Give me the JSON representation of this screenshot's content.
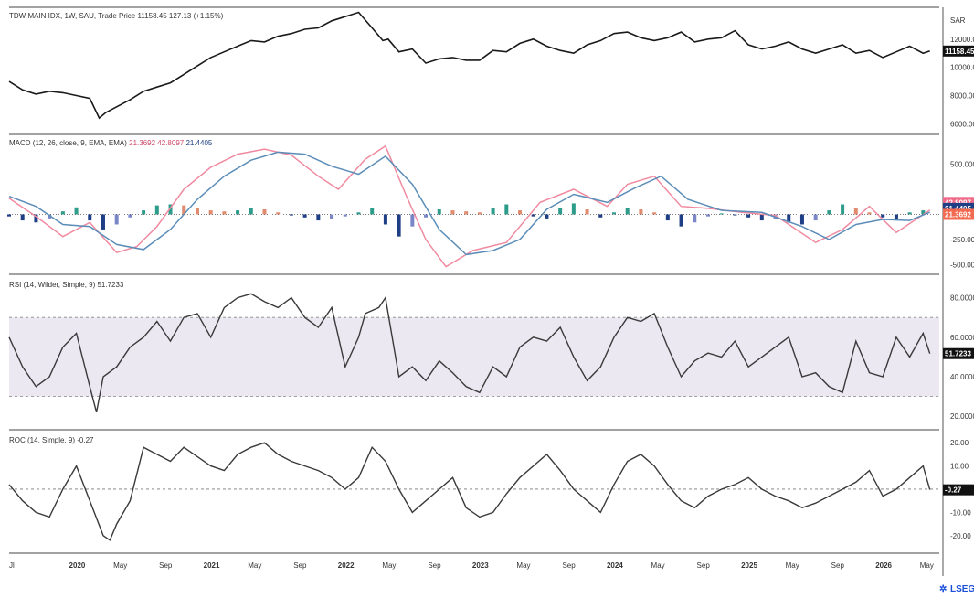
{
  "header": {
    "title": "TDW MAIN IDX, 1W, SAU, Trade Price",
    "last": "11158.45",
    "change": "127.13 (+1.15%)",
    "currency": "SAR"
  },
  "footer": {
    "logo": "LSEG"
  },
  "chart_data": [
    {
      "type": "line",
      "pane": "price",
      "title": "TDW MAIN IDX, 1W, SAU, Trade Price",
      "ylim": [
        5500,
        14000
      ],
      "yticks": [
        "12000.00",
        "10000.00",
        "8000.00",
        "6000.00"
      ],
      "ytick_values": [
        12000,
        10000,
        8000,
        6000
      ],
      "last_value": "11158.45",
      "color": "#1a1a1a",
      "x": [
        2019.5,
        2019.6,
        2019.7,
        2019.8,
        2019.9,
        2020.0,
        2020.1,
        2020.17,
        2020.22,
        2020.3,
        2020.4,
        2020.5,
        2020.6,
        2020.7,
        2020.8,
        2020.9,
        2021.0,
        2021.1,
        2021.2,
        2021.3,
        2021.4,
        2021.5,
        2021.6,
        2021.7,
        2021.8,
        2021.9,
        2022.0,
        2022.1,
        2022.2,
        2022.28,
        2022.32,
        2022.4,
        2022.5,
        2022.6,
        2022.7,
        2022.8,
        2022.9,
        2023.0,
        2023.1,
        2023.2,
        2023.3,
        2023.4,
        2023.5,
        2023.6,
        2023.7,
        2023.8,
        2023.9,
        2024.0,
        2024.1,
        2024.2,
        2024.3,
        2024.4,
        2024.5,
        2024.6,
        2024.7,
        2024.8,
        2024.9,
        2025.0,
        2025.1,
        2025.2,
        2025.3,
        2025.4,
        2025.5,
        2025.6,
        2025.7,
        2025.8,
        2025.9,
        2026.0,
        2026.1,
        2026.2,
        2026.3,
        2026.35
      ],
      "y": [
        9000,
        8400,
        8100,
        8300,
        8200,
        8000,
        7800,
        6400,
        6800,
        7200,
        7700,
        8300,
        8600,
        8900,
        9500,
        10100,
        10700,
        11100,
        11500,
        11900,
        11800,
        12200,
        12400,
        12700,
        12800,
        13300,
        13600,
        13900,
        12800,
        11900,
        12000,
        11100,
        11300,
        10300,
        10600,
        10700,
        10500,
        10500,
        11200,
        11100,
        11700,
        12000,
        11500,
        11200,
        11000,
        11600,
        11900,
        12400,
        12500,
        12100,
        11900,
        12100,
        12500,
        11800,
        12000,
        12100,
        12600,
        11600,
        11300,
        11500,
        11800,
        11300,
        11000,
        11300,
        11600,
        11000,
        11200,
        10700,
        11100,
        11500,
        11000,
        11158
      ]
    },
    {
      "type": "line",
      "pane": "macd",
      "title": "MACD (12, 26, close, 9, EMA, EMA)",
      "values_label": [
        "21.3692",
        "42.8097",
        "21.4405"
      ],
      "ylim": [
        -560,
        760
      ],
      "yticks": [
        "500.0000",
        "-250.0000",
        "-500.0000"
      ],
      "ytick_values": [
        500,
        -250,
        -500
      ],
      "series": [
        {
          "name": "MACD",
          "color": "#f08aa0",
          "tag": "42.8097",
          "x": [
            2019.5,
            2019.7,
            2019.9,
            2020.1,
            2020.3,
            2020.45,
            2020.6,
            2020.8,
            2021.0,
            2021.2,
            2021.4,
            2021.6,
            2021.8,
            2021.95,
            2022.15,
            2022.3,
            2022.45,
            2022.6,
            2022.75,
            2022.95,
            2023.2,
            2023.45,
            2023.7,
            2023.95,
            2024.1,
            2024.3,
            2024.5,
            2024.7,
            2024.95,
            2025.2,
            2025.5,
            2025.7,
            2025.9,
            2026.1,
            2026.35
          ],
          "y": [
            160,
            -20,
            -220,
            -80,
            -380,
            -320,
            -120,
            250,
            470,
            600,
            650,
            590,
            380,
            250,
            550,
            680,
            200,
            -250,
            -520,
            -360,
            -280,
            120,
            250,
            80,
            300,
            380,
            80,
            60,
            20,
            -10,
            -280,
            -150,
            80,
            -180,
            42.8
          ]
        },
        {
          "name": "Signal",
          "color": "#5b8db8",
          "tag": "21.4405",
          "x": [
            2019.5,
            2019.7,
            2019.9,
            2020.1,
            2020.3,
            2020.5,
            2020.7,
            2020.9,
            2021.1,
            2021.3,
            2021.5,
            2021.7,
            2021.9,
            2022.1,
            2022.3,
            2022.5,
            2022.7,
            2022.9,
            2023.1,
            2023.3,
            2023.5,
            2023.7,
            2023.95,
            2024.15,
            2024.35,
            2024.55,
            2024.8,
            2025.1,
            2025.4,
            2025.6,
            2025.8,
            2026.0,
            2026.2,
            2026.35
          ],
          "y": [
            180,
            80,
            -100,
            -120,
            -300,
            -350,
            -150,
            150,
            380,
            540,
            620,
            600,
            480,
            400,
            580,
            300,
            -150,
            -400,
            -360,
            -250,
            50,
            200,
            120,
            260,
            380,
            150,
            40,
            20,
            -120,
            -250,
            -100,
            -50,
            -60,
            21.4
          ]
        }
      ],
      "histogram": {
        "name": "Histogram",
        "tag": "21.3692",
        "color_pos": "#2e9c8a",
        "color_neg": "#1e3f86",
        "color_pos_fade": "#e08a6e",
        "color_neg_fade": "#7a86c8",
        "x": [
          2019.5,
          2019.6,
          2019.7,
          2019.8,
          2019.9,
          2020.0,
          2020.1,
          2020.2,
          2020.3,
          2020.4,
          2020.5,
          2020.6,
          2020.7,
          2020.8,
          2020.9,
          2021.0,
          2021.1,
          2021.2,
          2021.3,
          2021.4,
          2021.5,
          2021.6,
          2021.7,
          2021.8,
          2021.9,
          2022.0,
          2022.1,
          2022.2,
          2022.3,
          2022.4,
          2022.5,
          2022.6,
          2022.7,
          2022.8,
          2022.9,
          2023.0,
          2023.1,
          2023.2,
          2023.3,
          2023.4,
          2023.5,
          2023.6,
          2023.7,
          2023.8,
          2023.9,
          2024.0,
          2024.1,
          2024.2,
          2024.3,
          2024.4,
          2024.5,
          2024.6,
          2024.7,
          2024.8,
          2024.9,
          2025.0,
          2025.1,
          2025.2,
          2025.3,
          2025.4,
          2025.5,
          2025.6,
          2025.7,
          2025.8,
          2025.9,
          2026.0,
          2026.1,
          2026.2,
          2026.3
        ],
        "y": [
          -20,
          -60,
          -80,
          -40,
          30,
          70,
          -60,
          -150,
          -100,
          -30,
          40,
          90,
          100,
          90,
          60,
          40,
          30,
          40,
          60,
          50,
          20,
          -10,
          -30,
          -60,
          -50,
          -20,
          20,
          60,
          -100,
          -220,
          -120,
          -30,
          50,
          40,
          30,
          20,
          60,
          100,
          40,
          -20,
          -40,
          60,
          110,
          50,
          -30,
          20,
          60,
          50,
          20,
          -60,
          -120,
          -80,
          -20,
          10,
          -10,
          -30,
          -60,
          -50,
          -80,
          -100,
          -60,
          40,
          100,
          60,
          20,
          -30,
          -60,
          20,
          40
        ]
      }
    },
    {
      "type": "line",
      "pane": "rsi",
      "title": "RSI (14, Wilder, Simple, 9)",
      "value_label": "51.7233",
      "ylim": [
        15,
        90
      ],
      "yticks": [
        "80.0000",
        "60.0000",
        "40.0000",
        "20.0000"
      ],
      "ytick_values": [
        80,
        60,
        40,
        20
      ],
      "band": [
        30,
        70
      ],
      "color": "#3a3a3a",
      "x": [
        2019.5,
        2019.6,
        2019.7,
        2019.8,
        2019.9,
        2020.0,
        2020.1,
        2020.15,
        2020.2,
        2020.3,
        2020.4,
        2020.5,
        2020.6,
        2020.7,
        2020.8,
        2020.9,
        2021.0,
        2021.1,
        2021.2,
        2021.3,
        2021.4,
        2021.5,
        2021.6,
        2021.7,
        2021.8,
        2021.9,
        2022.0,
        2022.1,
        2022.15,
        2022.25,
        2022.3,
        2022.4,
        2022.5,
        2022.6,
        2022.7,
        2022.8,
        2022.9,
        2023.0,
        2023.1,
        2023.2,
        2023.3,
        2023.4,
        2023.5,
        2023.6,
        2023.7,
        2023.8,
        2023.9,
        2024.0,
        2024.1,
        2024.2,
        2024.3,
        2024.4,
        2024.5,
        2024.6,
        2024.7,
        2024.8,
        2024.9,
        2025.0,
        2025.1,
        2025.2,
        2025.3,
        2025.4,
        2025.5,
        2025.6,
        2025.7,
        2025.8,
        2025.9,
        2026.0,
        2026.1,
        2026.2,
        2026.3,
        2026.35
      ],
      "y": [
        60,
        45,
        35,
        40,
        55,
        62,
        35,
        22,
        40,
        45,
        55,
        60,
        68,
        58,
        70,
        72,
        60,
        75,
        80,
        82,
        78,
        75,
        80,
        70,
        65,
        75,
        45,
        60,
        72,
        75,
        80,
        40,
        45,
        38,
        48,
        42,
        35,
        32,
        45,
        40,
        55,
        60,
        58,
        65,
        50,
        38,
        45,
        60,
        70,
        68,
        72,
        55,
        40,
        48,
        52,
        50,
        58,
        45,
        50,
        55,
        60,
        40,
        42,
        35,
        32,
        58,
        42,
        40,
        60,
        50,
        62,
        51.7
      ]
    },
    {
      "type": "line",
      "pane": "roc",
      "title": "ROC (14, Simple, 9)",
      "value_label": "-0.27",
      "ylim": [
        -26,
        24
      ],
      "yticks": [
        "20.00",
        "10.00",
        "-10.00",
        "-20.00"
      ],
      "ytick_values": [
        20,
        10,
        -10,
        -20
      ],
      "zero_line": 0,
      "color": "#3a3a3a",
      "x": [
        2019.5,
        2019.6,
        2019.7,
        2019.8,
        2019.9,
        2020.0,
        2020.1,
        2020.2,
        2020.25,
        2020.3,
        2020.4,
        2020.5,
        2020.6,
        2020.7,
        2020.8,
        2020.9,
        2021.0,
        2021.1,
        2021.2,
        2021.3,
        2021.4,
        2021.5,
        2021.6,
        2021.7,
        2021.8,
        2021.9,
        2022.0,
        2022.1,
        2022.2,
        2022.3,
        2022.4,
        2022.5,
        2022.6,
        2022.7,
        2022.8,
        2022.9,
        2023.0,
        2023.1,
        2023.2,
        2023.3,
        2023.4,
        2023.5,
        2023.6,
        2023.7,
        2023.8,
        2023.9,
        2024.0,
        2024.1,
        2024.2,
        2024.3,
        2024.4,
        2024.5,
        2024.6,
        2024.7,
        2024.8,
        2024.9,
        2025.0,
        2025.1,
        2025.2,
        2025.3,
        2025.4,
        2025.5,
        2025.6,
        2025.7,
        2025.8,
        2025.9,
        2026.0,
        2026.1,
        2026.2,
        2026.3,
        2026.35
      ],
      "y": [
        2,
        -5,
        -10,
        -12,
        0,
        10,
        -5,
        -20,
        -22,
        -15,
        -5,
        18,
        15,
        12,
        18,
        14,
        10,
        8,
        15,
        18,
        20,
        15,
        12,
        10,
        8,
        5,
        0,
        5,
        18,
        12,
        0,
        -10,
        -5,
        0,
        5,
        -8,
        -12,
        -10,
        -2,
        5,
        10,
        15,
        8,
        0,
        -5,
        -10,
        2,
        12,
        15,
        10,
        2,
        -5,
        -8,
        -3,
        0,
        2,
        5,
        0,
        -3,
        -5,
        -8,
        -6,
        -3,
        0,
        3,
        8,
        -3,
        0,
        5,
        10,
        -0.27
      ]
    }
  ],
  "xaxis": {
    "range": [
      2019.5,
      2026.42
    ],
    "ticks": [
      {
        "t": 2019.5,
        "label": "Jl"
      },
      {
        "t": 2020.0,
        "label": "2020"
      },
      {
        "t": 2020.33,
        "label": "May"
      },
      {
        "t": 2020.67,
        "label": "Sep"
      },
      {
        "t": 2021.0,
        "label": "2021"
      },
      {
        "t": 2021.33,
        "label": "May"
      },
      {
        "t": 2021.67,
        "label": "Sep"
      },
      {
        "t": 2022.0,
        "label": "2022"
      },
      {
        "t": 2022.33,
        "label": "May"
      },
      {
        "t": 2022.67,
        "label": "Sep"
      },
      {
        "t": 2023.0,
        "label": "2023"
      },
      {
        "t": 2023.33,
        "label": "May"
      },
      {
        "t": 2023.67,
        "label": "Sep"
      },
      {
        "t": 2024.0,
        "label": "2024"
      },
      {
        "t": 2024.33,
        "label": "May"
      },
      {
        "t": 2024.67,
        "label": "Sep"
      },
      {
        "t": 2025.0,
        "label": "2025"
      },
      {
        "t": 2025.33,
        "label": "May"
      },
      {
        "t": 2025.67,
        "label": "Sep"
      },
      {
        "t": 2026.0,
        "label": "2026"
      },
      {
        "t": 2026.33,
        "label": "May"
      }
    ]
  },
  "colors": {
    "macd_tag": "#f06b8a",
    "signal_tag": "#1e3f86",
    "hist_tag": "#f26a4f",
    "last_tag": "#111111",
    "rsi_band": "#ebe8f2",
    "logo": "#1a4fd8"
  }
}
